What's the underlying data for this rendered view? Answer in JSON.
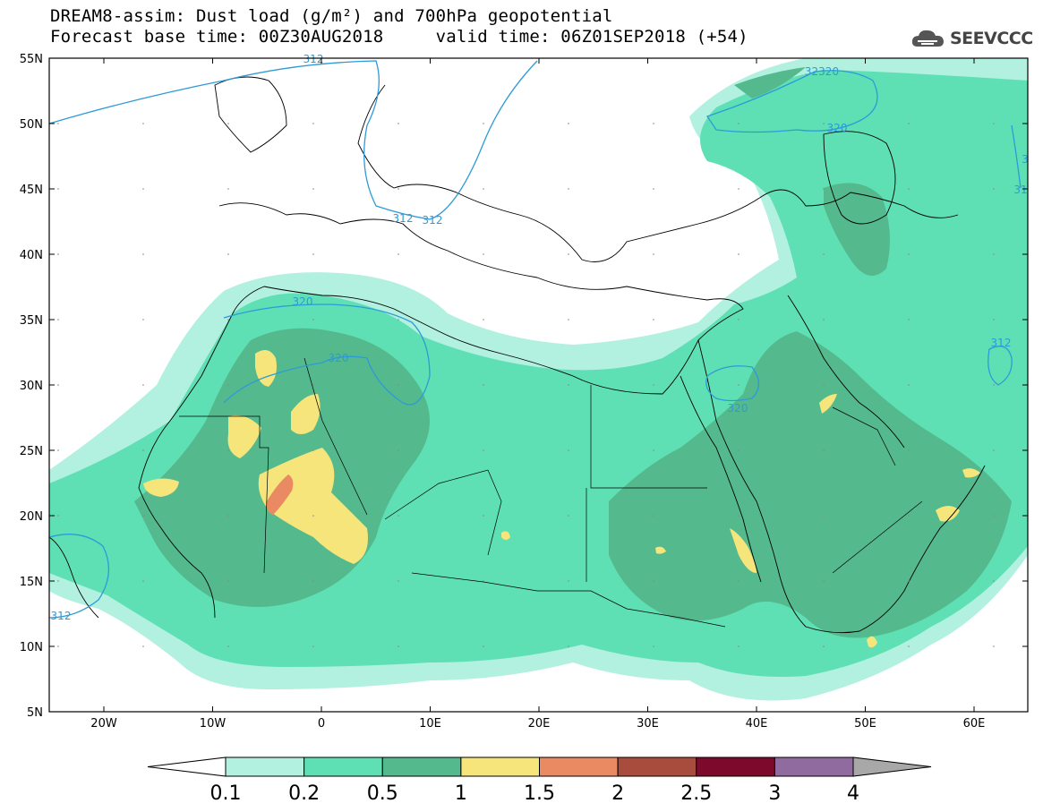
{
  "title": {
    "line1": "DREAM8-assim: Dust load (g/m²) and 700hPa geopotential",
    "line2": "Forecast base time: 00Z30AUG2018     valid time: 06Z01SEP2018 (+54)"
  },
  "logo": {
    "text": "SEEVCCC",
    "icon": "cloud-icon"
  },
  "map": {
    "lat_labels": [
      "55N",
      "50N",
      "45N",
      "40N",
      "35N",
      "30N",
      "25N",
      "20N",
      "15N",
      "10N",
      "5N"
    ],
    "lon_labels": [
      "20W",
      "10W",
      "0",
      "10E",
      "20E",
      "30E",
      "40E",
      "50E",
      "60E"
    ],
    "contour_labels": [
      "312",
      "312",
      "312",
      "320",
      "320",
      "32320",
      "320",
      "320",
      "312",
      "312",
      "31",
      "3"
    ]
  },
  "colorbar": {
    "labels": [
      "0.1",
      "0.2",
      "0.5",
      "1",
      "1.5",
      "2",
      "2.5",
      "3",
      "4"
    ],
    "colors": [
      "#ffffff",
      "#b2f0e0",
      "#5ee0b4",
      "#55b98e",
      "#f5e57a",
      "#e98a62",
      "#a84c3d",
      "#7d0a2c",
      "#8f6ba0",
      "#a8a8a8"
    ]
  }
}
